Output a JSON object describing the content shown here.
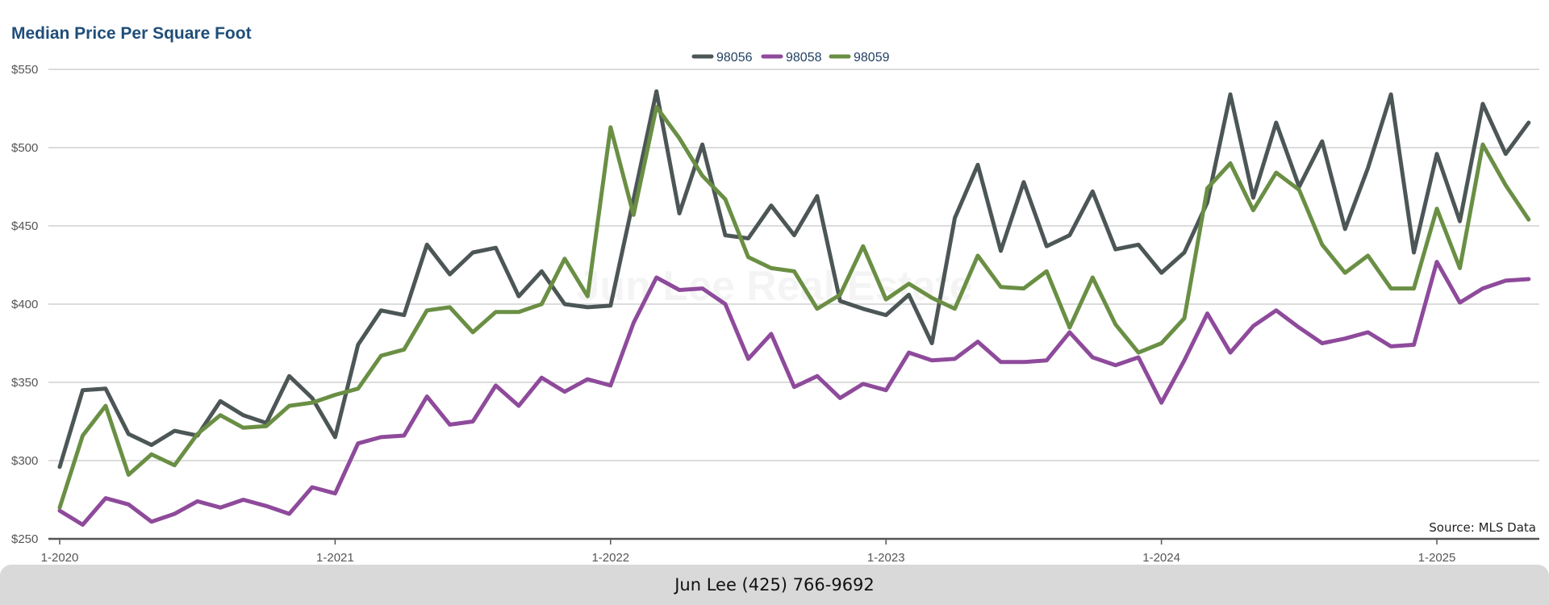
{
  "footer": {
    "contact": "Jun Lee (425) 766-9692"
  },
  "chart_data": {
    "type": "line",
    "title": "Median Price Per Square Foot",
    "xlabel": "",
    "ylabel": "",
    "ylim": [
      250,
      550
    ],
    "yticks": [
      250,
      300,
      350,
      400,
      450,
      500,
      550
    ],
    "ytick_labels": [
      "$250",
      "$300",
      "$350",
      "$400",
      "$450",
      "$500",
      "$550"
    ],
    "xticks": [
      {
        "label": "1-2020",
        "index": 0
      },
      {
        "label": "1-2021",
        "index": 12
      },
      {
        "label": "1-2022",
        "index": 24
      },
      {
        "label": "1-2023",
        "index": 36
      },
      {
        "label": "1-2024",
        "index": 48
      },
      {
        "label": "1-2025",
        "index": 60
      }
    ],
    "x_start": "2020-01",
    "x_step": "1 month",
    "grid": true,
    "legend_position": "top-center",
    "source": "Source: MLS Data",
    "watermark": "Jun Lee Real Estate",
    "series": [
      {
        "name": "98056",
        "color": "#4d5656",
        "values": [
          296,
          345,
          346,
          317,
          310,
          319,
          316,
          338,
          329,
          324,
          354,
          340,
          315,
          374,
          396,
          393,
          438,
          419,
          433,
          436,
          405,
          421,
          400,
          398,
          399,
          467,
          536,
          458,
          502,
          444,
          442,
          463,
          444,
          469,
          402,
          397,
          393,
          406,
          375,
          455,
          489,
          434,
          478,
          437,
          444,
          472,
          435,
          438,
          420,
          433,
          465,
          534,
          468,
          516,
          475,
          504,
          448,
          487,
          534,
          433,
          496,
          453,
          528,
          496,
          516
        ]
      },
      {
        "name": "98058",
        "color": "#8e4a9b",
        "values": [
          268,
          259,
          276,
          272,
          261,
          266,
          274,
          270,
          275,
          271,
          266,
          283,
          279,
          311,
          315,
          316,
          341,
          323,
          325,
          348,
          335,
          353,
          344,
          352,
          348,
          388,
          417,
          409,
          410,
          400,
          365,
          381,
          347,
          354,
          340,
          349,
          345,
          369,
          364,
          365,
          376,
          363,
          363,
          364,
          382,
          366,
          361,
          366,
          337,
          364,
          394,
          369,
          386,
          396,
          385,
          375,
          378,
          382,
          373,
          374,
          427,
          401,
          410,
          415,
          416
        ]
      },
      {
        "name": "98059",
        "color": "#6a8f44",
        "values": [
          270,
          316,
          335,
          291,
          304,
          297,
          317,
          329,
          321,
          322,
          335,
          337,
          342,
          346,
          367,
          371,
          396,
          398,
          382,
          395,
          395,
          400,
          429,
          405,
          513,
          457,
          526,
          506,
          482,
          467,
          430,
          423,
          421,
          397,
          406,
          437,
          403,
          413,
          404,
          397,
          431,
          411,
          410,
          421,
          385,
          417,
          387,
          369,
          375,
          391,
          474,
          490,
          460,
          484,
          473,
          438,
          420,
          431,
          410,
          410,
          461,
          423,
          502,
          476,
          454
        ]
      }
    ]
  }
}
